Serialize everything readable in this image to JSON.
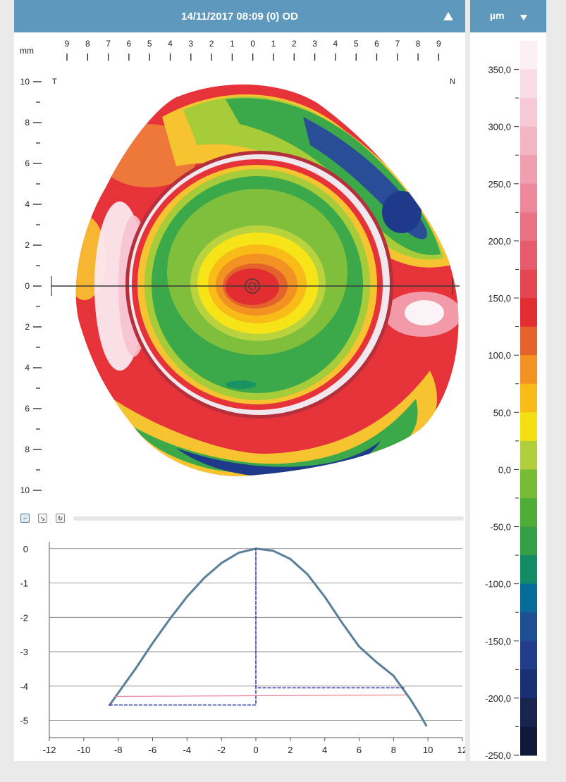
{
  "header": {
    "title": "14/11/2017 08:09 (0) OD",
    "collapse_icon": "triangle-up-icon"
  },
  "scale_header": {
    "unit": "µm",
    "dropdown_icon": "triangle-down-icon"
  },
  "topography_map": {
    "unit_label": "mm",
    "left_marker": "T",
    "right_marker": "N",
    "top_axis_labels": [
      "9",
      "8",
      "7",
      "6",
      "5",
      "4",
      "3",
      "2",
      "1",
      "0",
      "1",
      "2",
      "3",
      "4",
      "5",
      "6",
      "7",
      "8",
      "9"
    ],
    "side_axis_labels": [
      "10",
      "8",
      "6",
      "4",
      "2",
      "0",
      "2",
      "4",
      "6",
      "8",
      "10"
    ]
  },
  "profile_controls": {
    "buttons": [
      {
        "icon": "minus-icon",
        "label": "−"
      },
      {
        "icon": "arrow-in-icon",
        "label": "↘"
      },
      {
        "icon": "rotate-icon",
        "label": "↻"
      }
    ]
  },
  "color_scale": {
    "labels": [
      "350,0",
      "300,0",
      "250,0",
      "200,0",
      "150,0",
      "100,0",
      "50,0",
      "0,0",
      "-50,0",
      "-100,0",
      "-150,0",
      "-200,0",
      "-250,0"
    ],
    "colors": [
      "#fbeff5",
      "#f9dde6",
      "#f6c9d5",
      "#f3b4c3",
      "#f09fb1",
      "#ec889c",
      "#e97285",
      "#e65c6d",
      "#e4474f",
      "#e22d31",
      "#e4632c",
      "#f29223",
      "#f8bb18",
      "#f2e011",
      "#b1cf3b",
      "#78bc36",
      "#4fac36",
      "#33a048",
      "#138c66",
      "#076c9a",
      "#1f4f93",
      "#223e8b",
      "#1c2f72",
      "#17254f",
      "#11193b"
    ]
  },
  "chart_data": {
    "type": "line",
    "title": "",
    "xlabel": "",
    "ylabel": "",
    "xlim": [
      -12,
      12
    ],
    "ylim": [
      -5.5,
      0.2
    ],
    "x_ticks": [
      "-12",
      "-10",
      "-8",
      "-6",
      "-4",
      "-2",
      "0",
      "2",
      "4",
      "6",
      "8",
      "10",
      "12"
    ],
    "y_ticks": [
      "0",
      "-1",
      "-2",
      "-3",
      "-4",
      "-5"
    ],
    "grid": true,
    "series": [
      {
        "line_color": "#5a7f98",
        "style": "solid",
        "x": [
          -8.5,
          -8,
          -7,
          -6,
          -5,
          -4,
          -3,
          -2,
          -1,
          0,
          1,
          2,
          3,
          4,
          5,
          6,
          7,
          8,
          8.5,
          9,
          9.5,
          9.9
        ],
        "y": [
          -4.55,
          -4.2,
          -3.5,
          -2.75,
          -2.05,
          -1.4,
          -0.85,
          -0.42,
          -0.12,
          0.0,
          -0.06,
          -0.3,
          -0.75,
          -1.4,
          -2.15,
          -2.85,
          -3.3,
          -3.7,
          -4.05,
          -4.4,
          -4.8,
          -5.15
        ]
      },
      {
        "line_color": "#3c45a8",
        "style": "dashed",
        "x": [
          -8.5,
          0,
          0,
          0,
          8.7
        ],
        "y": [
          -4.55,
          -4.55,
          0.0,
          -4.05,
          -4.05
        ]
      },
      {
        "line_color": "#e8848e",
        "style": "solid",
        "x": [
          -8.2,
          8.7
        ],
        "y": [
          -4.3,
          -4.26
        ]
      }
    ]
  }
}
